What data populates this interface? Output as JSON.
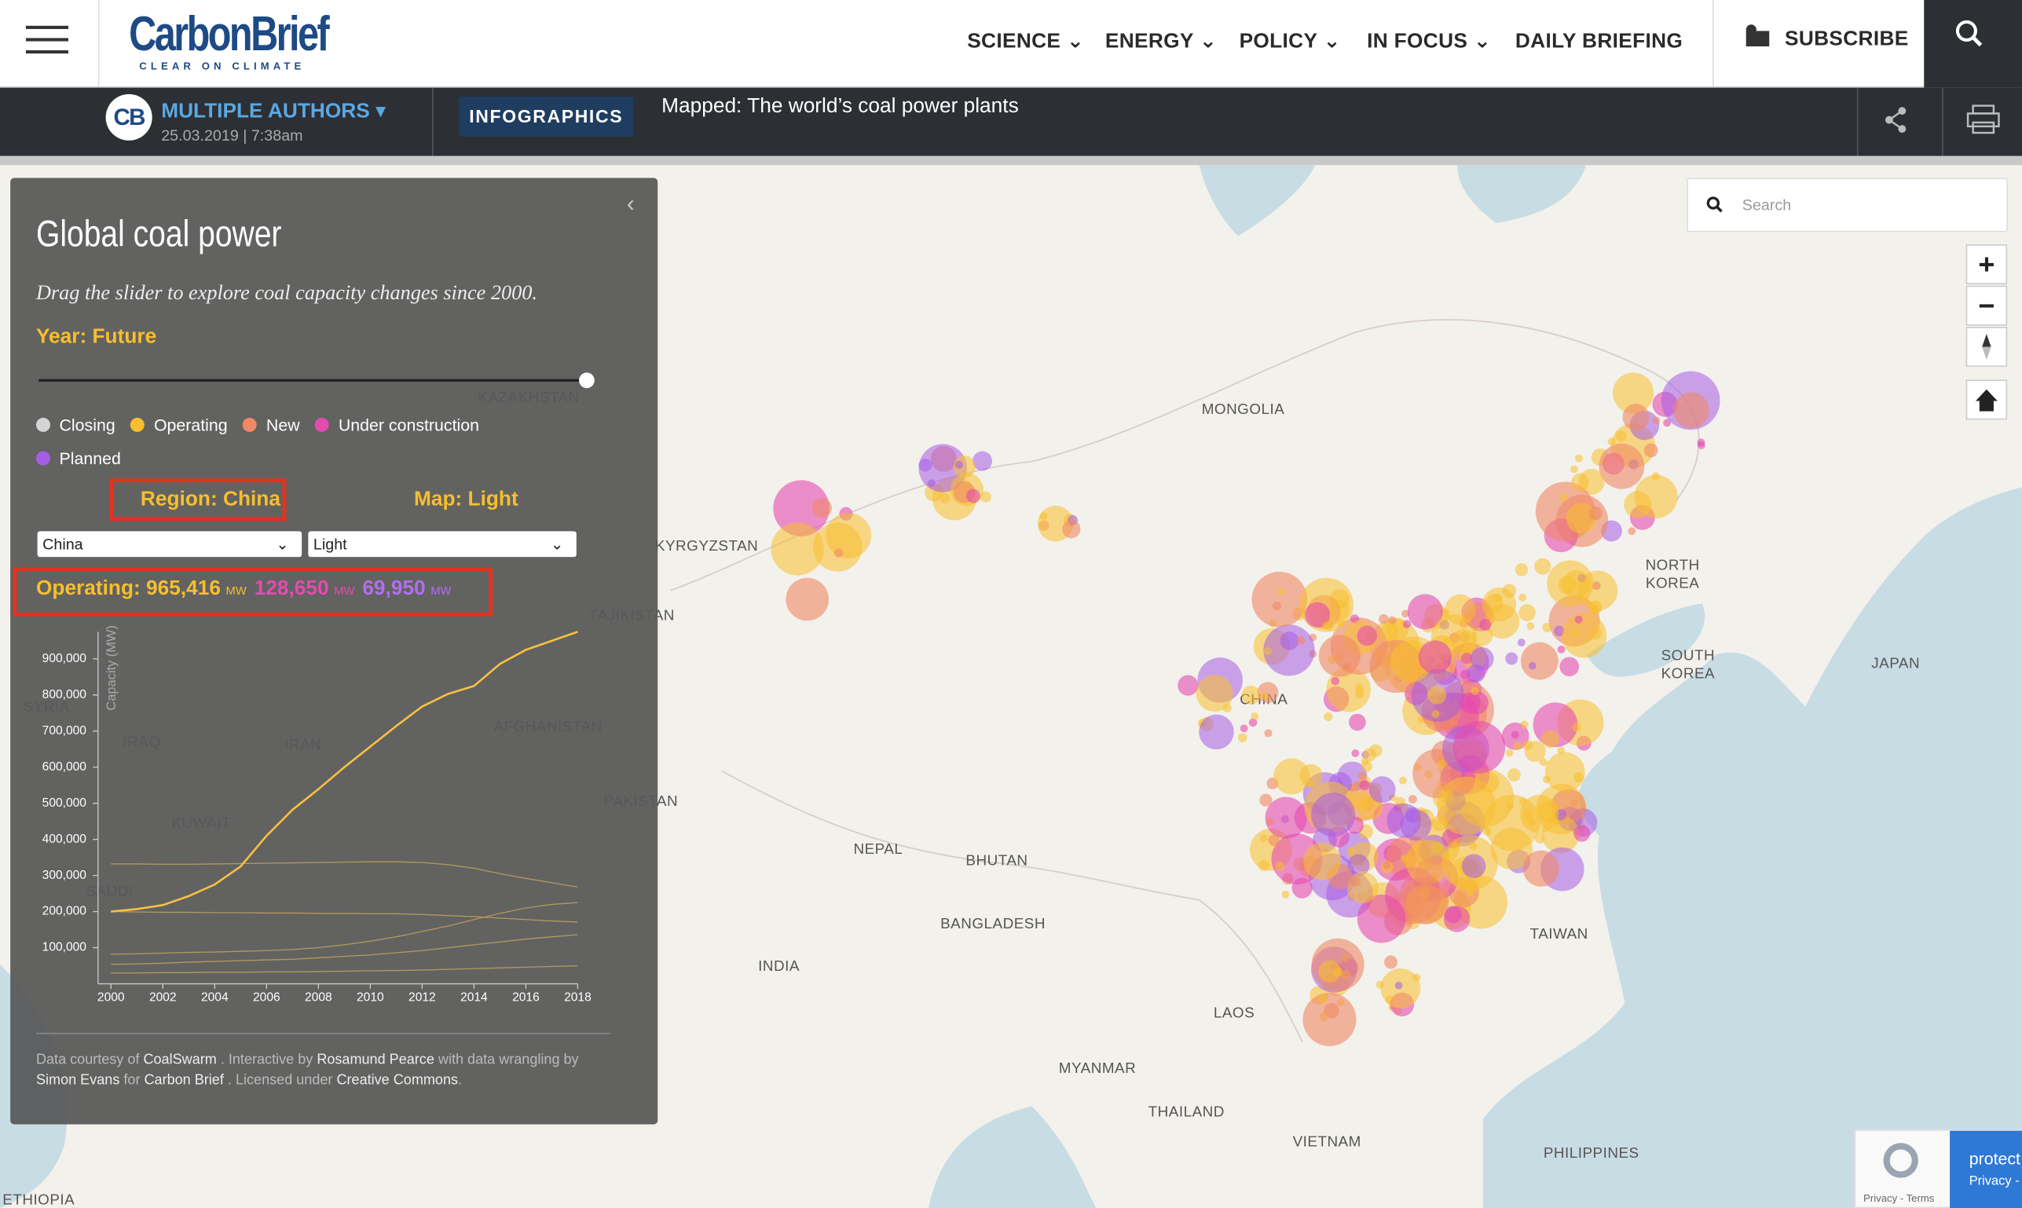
{
  "header": {
    "logo": "CarbonBrief",
    "tagline": "CLEAR ON CLIMATE",
    "nav": [
      "SCIENCE",
      "ENERGY",
      "POLICY",
      "IN FOCUS",
      "DAILY BRIEFING"
    ],
    "subscribe": "SUBSCRIBE"
  },
  "article": {
    "logo": "CB",
    "author": "MULTIPLE AUTHORS",
    "date": "25.03.2019 | 7:38am",
    "category": "INFOGRAPHICS",
    "title": "Mapped: The world’s coal power plants"
  },
  "panel": {
    "title": "Global coal power",
    "subtitle": "Drag the slider to explore coal capacity changes since 2000.",
    "year": "Year: Future",
    "legend": [
      {
        "name": "Closing",
        "color": "#d4d4d4"
      },
      {
        "name": "Operating",
        "color": "#f7bf2e"
      },
      {
        "name": "New",
        "color": "#f08866"
      },
      {
        "name": "Under construction",
        "color": "#e44bb0"
      },
      {
        "name": "Planned",
        "color": "#a65de6"
      }
    ],
    "region_label": "Region: China",
    "map_label": "Map: Light",
    "region_select": "China",
    "map_select": "Light",
    "stats": [
      {
        "text": "Operating: 965,416",
        "unit": "MW",
        "color": "#f7bf2e"
      },
      {
        "text": "128,650",
        "unit": "MW",
        "color": "#e44bb0"
      },
      {
        "text": "69,950",
        "unit": "MW",
        "color": "#b070ee"
      }
    ],
    "credits": [
      "Data courtesy of",
      "CoalSwarm",
      ". Interactive by",
      "Rosamund Pearce",
      "with data wrangling by",
      "Simon Evans",
      "for",
      "Carbon Brief",
      ". Licensed under",
      "Creative Commons",
      "."
    ]
  },
  "chart_data": {
    "type": "line",
    "y_label": "Capacity (MW)",
    "x": [
      2000,
      2001,
      2002,
      2003,
      2004,
      2005,
      2006,
      2007,
      2008,
      2009,
      2010,
      2011,
      2012,
      2013,
      2014,
      2015,
      2016,
      2017,
      2018
    ],
    "series": [
      {
        "color": "#f7c040",
        "width": 1.6,
        "values": [
          200000,
          207000,
          218000,
          243000,
          275000,
          325000,
          410000,
          482000,
          539000,
          600000,
          657000,
          714000,
          768000,
          803000,
          825000,
          886000,
          925000,
          950000,
          975000
        ]
      },
      {
        "color": "#b49a5a",
        "width": 0.8,
        "values": [
          332000,
          332000,
          331000,
          331000,
          332000,
          333000,
          334000,
          335000,
          336000,
          337000,
          338000,
          338000,
          336000,
          330000,
          320000,
          305000,
          292000,
          280000,
          268000
        ]
      },
      {
        "color": "#b49a5a",
        "width": 0.8,
        "values": [
          200000,
          199000,
          198000,
          198000,
          197000,
          197000,
          196000,
          196000,
          195000,
          195000,
          194000,
          194000,
          192000,
          189000,
          186000,
          182000,
          178000,
          174000,
          171000
        ]
      },
      {
        "color": "#b49a5a",
        "width": 0.8,
        "values": [
          82000,
          83000,
          85000,
          87000,
          88000,
          90000,
          92000,
          95000,
          100000,
          108000,
          118000,
          130000,
          145000,
          160000,
          178000,
          195000,
          210000,
          220000,
          225000
        ]
      },
      {
        "color": "#b49a5a",
        "width": 0.8,
        "values": [
          54000,
          55000,
          57000,
          60000,
          62000,
          64000,
          66000,
          68000,
          72000,
          76000,
          80000,
          86000,
          92000,
          100000,
          108000,
          116000,
          124000,
          130000,
          136000
        ]
      },
      {
        "color": "#b49a5a",
        "width": 0.8,
        "values": [
          30000,
          30000,
          31000,
          31000,
          32000,
          32000,
          33000,
          33000,
          34000,
          35000,
          36000,
          37000,
          38000,
          40000,
          42000,
          44000,
          46000,
          48000,
          50000
        ]
      }
    ],
    "xlim": [
      1999.5,
      2018
    ],
    "ylim": [
      0,
      1000000
    ],
    "xticks": [
      2000,
      2002,
      2004,
      2006,
      2008,
      2010,
      2012,
      2014,
      2016,
      2018
    ],
    "yticks": [
      {
        "value": 100000,
        "label": "100,000"
      },
      {
        "value": 200000,
        "label": "200,000"
      },
      {
        "value": 300000,
        "label": "300,000"
      },
      {
        "value": 400000,
        "label": "400,000"
      },
      {
        "value": 500000,
        "label": "500,000"
      },
      {
        "value": 600000,
        "label": "600,000"
      },
      {
        "value": 700000,
        "label": "700,000"
      },
      {
        "value": 800000,
        "label": "800,000"
      },
      {
        "value": 900000,
        "label": "900,000"
      }
    ]
  },
  "map": {
    "search": "Search",
    "labels": [
      "MONGOLIA",
      "CHINA",
      "KYRGYZSTAN",
      "TAJIKISTAN",
      "KAZAKHSTAN",
      "AFGHANISTAN",
      "PAKISTAN",
      "IRAN",
      "IRAQ",
      "SYRIA",
      "KUWAIT",
      "SAUDI",
      "ETHIOPIA",
      "NEPAL",
      "BHUTAN",
      "BANGLADESH",
      "INDIA",
      "LAOS",
      "MYANMAR",
      "THAILAND",
      "VIETNAM",
      "TAIWAN",
      "PHILIPPINES",
      "NORTH",
      "KOREA",
      "SOUTH",
      "KOREA",
      "JAPAN"
    ],
    "recaptcha": [
      "protect",
      "Privacy -",
      "Privacy - Terms"
    ]
  }
}
